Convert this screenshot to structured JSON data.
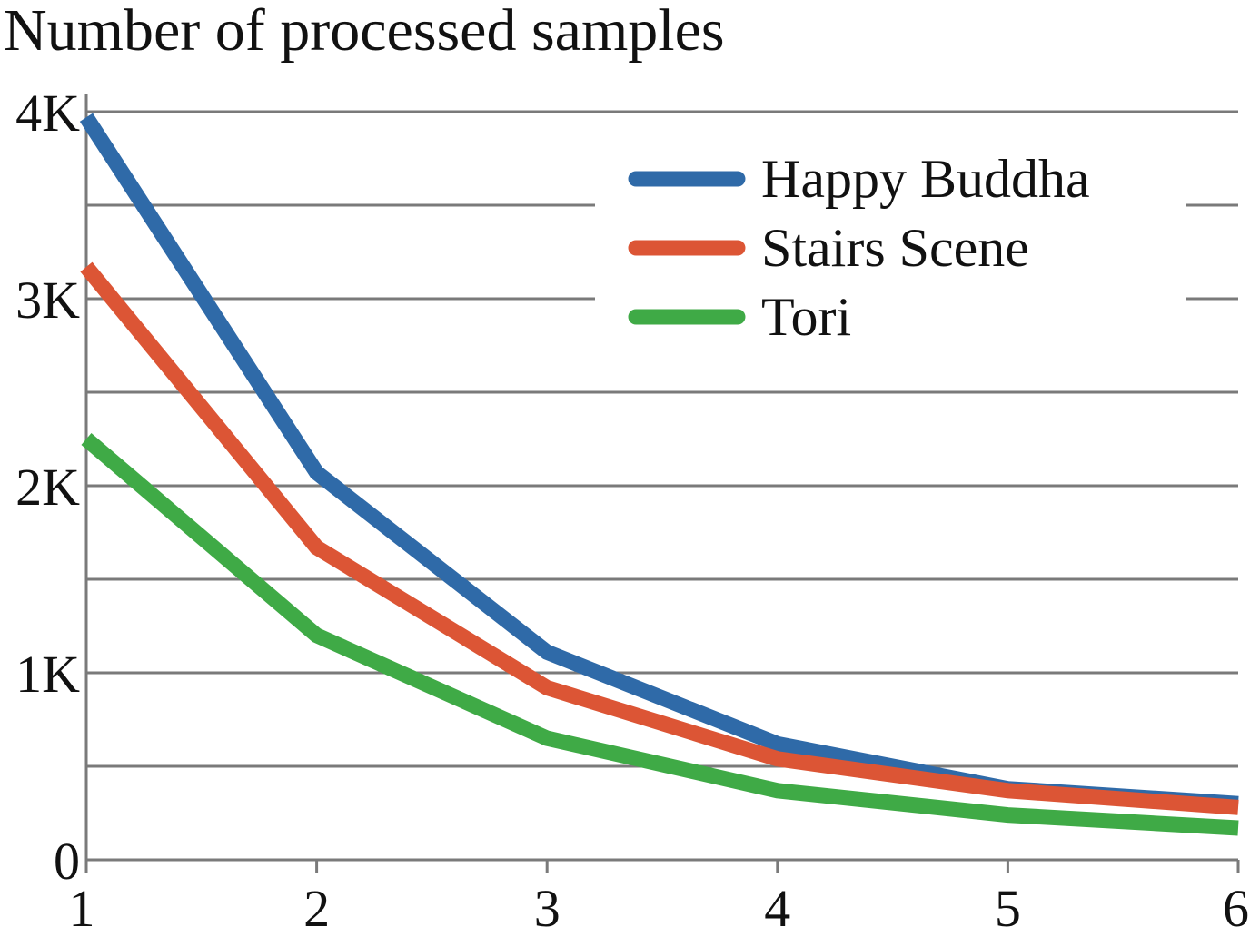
{
  "chart_data": {
    "type": "line",
    "title": "Number of processed samples",
    "xlabel": "",
    "ylabel": "",
    "x": [
      1,
      2,
      3,
      4,
      5,
      6
    ],
    "x_tick_labels": [
      "1",
      "2",
      "3",
      "4",
      "5",
      "6"
    ],
    "y_ticks": [
      0,
      1000,
      2000,
      3000,
      4000
    ],
    "y_tick_labels": [
      "0",
      "1K",
      "2K",
      "3K",
      "4K"
    ],
    "ylim": [
      0,
      4000
    ],
    "xlim": [
      1,
      6
    ],
    "grid": true,
    "legend_position": "top-right",
    "series": [
      {
        "name": "Happy Buddha",
        "color": "#2f6aa8",
        "values": [
          3970,
          2070,
          1110,
          620,
          380,
          300
        ]
      },
      {
        "name": "Stairs Scene",
        "color": "#dc5535",
        "values": [
          3170,
          1670,
          920,
          540,
          370,
          280
        ]
      },
      {
        "name": "Tori",
        "color": "#3faa46",
        "values": [
          2250,
          1200,
          650,
          370,
          240,
          170
        ]
      }
    ]
  }
}
